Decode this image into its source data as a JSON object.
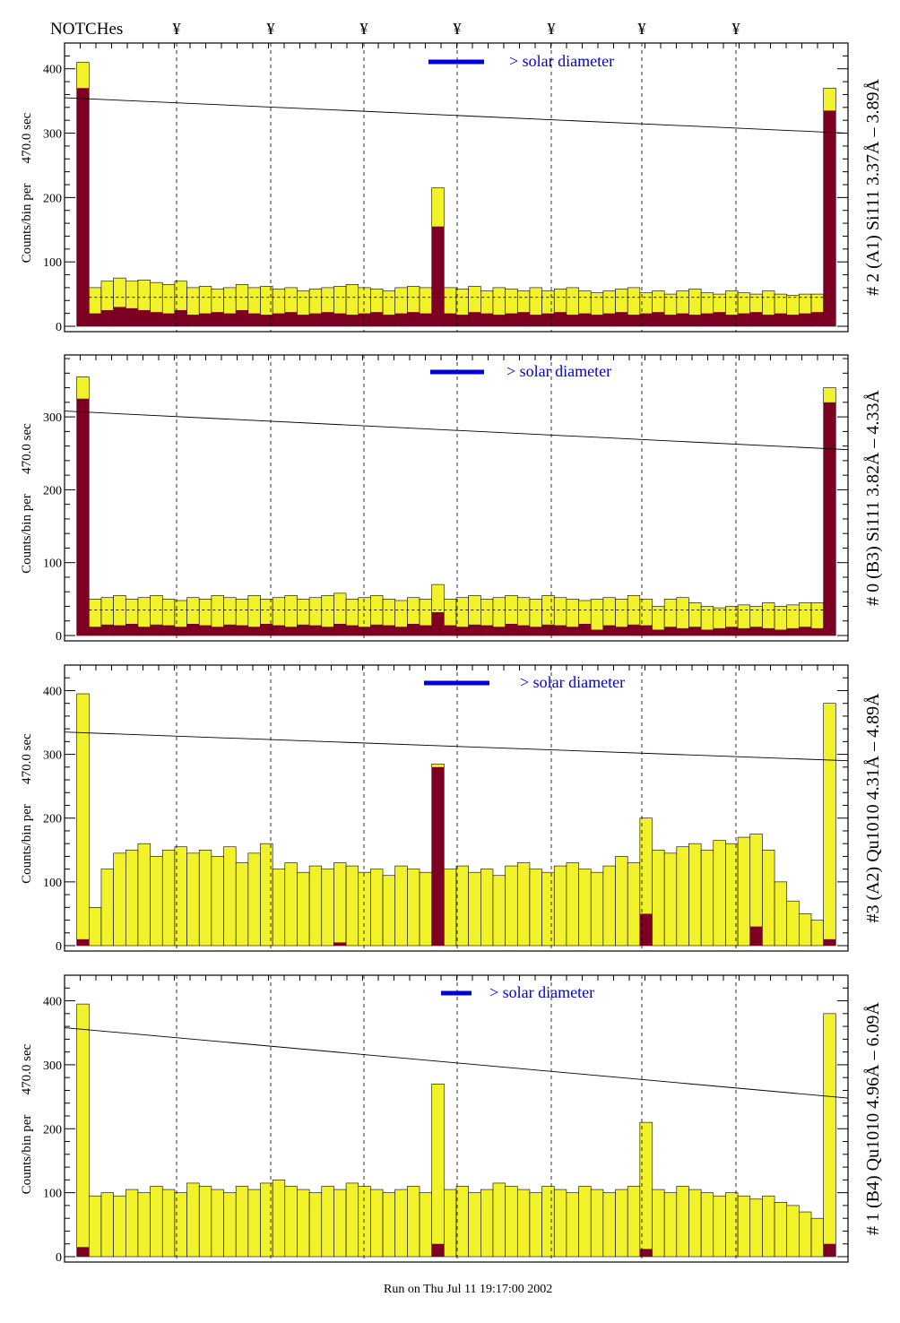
{
  "header": {
    "notches_label": "NOTCHes",
    "notch_glyph": "¥",
    "notch_count": 7
  },
  "footer": {
    "run_text": "Run on Thu Jul 11 19:17:00 2002"
  },
  "legend": {
    "label": "> solar diameter",
    "color": "#0000dd"
  },
  "colors": {
    "yellow": "#f2f22a",
    "darkred": "#7d0022"
  },
  "chart_data": [
    {
      "type": "bar",
      "title": "# 2 (A1) Si111  3.37Å – 3.89Å",
      "ylabel_top": "470.0 sec",
      "ylabel": "Counts/bin per",
      "ylim": [
        0,
        440
      ],
      "yticks": [
        "0",
        "100",
        "200",
        "300",
        "400"
      ],
      "ytick_values": [
        0,
        100,
        200,
        300,
        400
      ],
      "trend": [
        355,
        300
      ],
      "dashed_level": 45,
      "yellow": [
        0,
        410,
        60,
        70,
        75,
        70,
        72,
        68,
        65,
        70,
        60,
        62,
        58,
        60,
        65,
        60,
        62,
        58,
        60,
        55,
        58,
        60,
        62,
        65,
        60,
        58,
        55,
        60,
        62,
        60,
        215,
        60,
        58,
        62,
        55,
        60,
        58,
        55,
        60,
        55,
        58,
        60,
        55,
        52,
        55,
        58,
        60,
        52,
        55,
        50,
        55,
        58,
        52,
        50,
        55,
        52,
        50,
        55,
        50,
        48,
        50,
        50,
        370,
        0
      ],
      "red": [
        0,
        370,
        20,
        25,
        30,
        28,
        25,
        22,
        20,
        25,
        18,
        20,
        22,
        20,
        25,
        20,
        18,
        20,
        22,
        18,
        20,
        22,
        20,
        18,
        20,
        22,
        18,
        20,
        22,
        20,
        155,
        20,
        18,
        22,
        20,
        18,
        20,
        22,
        18,
        20,
        22,
        18,
        20,
        18,
        20,
        22,
        18,
        20,
        22,
        18,
        20,
        18,
        20,
        22,
        18,
        20,
        22,
        18,
        20,
        18,
        20,
        22,
        335,
        0
      ]
    },
    {
      "type": "bar",
      "title": "# 0 (B3) Si111  3.82Å – 4.33Å",
      "ylabel_top": "470.0 sec",
      "ylabel": "Counts/bin per",
      "ylim": [
        0,
        385
      ],
      "yticks": [
        "0",
        "100",
        "200",
        "300"
      ],
      "ytick_values": [
        0,
        100,
        200,
        300
      ],
      "trend": [
        308,
        255
      ],
      "dashed_level": 35,
      "yellow": [
        0,
        355,
        50,
        52,
        55,
        50,
        52,
        55,
        50,
        48,
        52,
        50,
        55,
        52,
        50,
        55,
        50,
        52,
        55,
        50,
        52,
        55,
        58,
        50,
        52,
        55,
        50,
        48,
        52,
        50,
        70,
        50,
        52,
        55,
        50,
        52,
        55,
        52,
        50,
        55,
        52,
        50,
        48,
        50,
        52,
        50,
        55,
        50,
        40,
        50,
        52,
        45,
        40,
        38,
        40,
        42,
        40,
        45,
        40,
        42,
        45,
        45,
        340,
        0
      ],
      "red": [
        0,
        325,
        12,
        15,
        14,
        16,
        12,
        15,
        14,
        12,
        16,
        14,
        12,
        15,
        14,
        12,
        16,
        14,
        12,
        15,
        14,
        12,
        16,
        14,
        12,
        15,
        14,
        12,
        16,
        14,
        32,
        14,
        12,
        15,
        14,
        12,
        16,
        14,
        12,
        15,
        14,
        12,
        16,
        8,
        14,
        12,
        15,
        14,
        8,
        12,
        10,
        12,
        8,
        10,
        12,
        10,
        12,
        10,
        8,
        10,
        12,
        10,
        320,
        0
      ]
    },
    {
      "type": "bar",
      "title": "#3 (A2) Qu1010  4.31Å – 4.89Å",
      "ylabel_top": "470.0 sec",
      "ylabel": "Counts/bin per",
      "ylim": [
        0,
        440
      ],
      "yticks": [
        "0",
        "100",
        "200",
        "300",
        "400"
      ],
      "ytick_values": [
        0,
        100,
        200,
        300,
        400
      ],
      "trend": [
        335,
        290
      ],
      "dashed_level": null,
      "yellow": [
        0,
        395,
        60,
        120,
        145,
        150,
        160,
        140,
        150,
        155,
        145,
        150,
        140,
        155,
        130,
        145,
        160,
        120,
        130,
        115,
        125,
        120,
        130,
        125,
        115,
        120,
        110,
        125,
        120,
        115,
        285,
        120,
        125,
        115,
        120,
        110,
        125,
        130,
        120,
        115,
        125,
        130,
        120,
        115,
        125,
        140,
        130,
        200,
        150,
        145,
        155,
        160,
        150,
        165,
        160,
        170,
        175,
        150,
        100,
        70,
        50,
        40,
        380,
        0
      ],
      "red": [
        0,
        10,
        0,
        0,
        0,
        0,
        0,
        0,
        0,
        0,
        0,
        0,
        0,
        0,
        0,
        0,
        0,
        0,
        0,
        0,
        0,
        0,
        5,
        0,
        0,
        0,
        0,
        0,
        0,
        0,
        280,
        0,
        0,
        0,
        0,
        0,
        0,
        0,
        0,
        0,
        0,
        0,
        0,
        0,
        0,
        0,
        0,
        50,
        0,
        0,
        0,
        0,
        0,
        0,
        0,
        0,
        30,
        0,
        0,
        0,
        0,
        0,
        10,
        0
      ]
    },
    {
      "type": "bar",
      "title": "# 1 (B4) Qu1010 4.96Å – 6.09Å",
      "ylabel_top": "470.0 sec",
      "ylabel": "Counts/bin per",
      "ylim": [
        0,
        440
      ],
      "yticks": [
        "0",
        "100",
        "200",
        "300",
        "400"
      ],
      "ytick_values": [
        0,
        100,
        200,
        300,
        400
      ],
      "trend": [
        358,
        248
      ],
      "dashed_level": null,
      "yellow": [
        0,
        395,
        95,
        100,
        95,
        105,
        100,
        110,
        105,
        100,
        115,
        110,
        105,
        100,
        110,
        105,
        115,
        120,
        110,
        105,
        100,
        110,
        105,
        115,
        110,
        105,
        100,
        105,
        110,
        100,
        270,
        105,
        110,
        100,
        105,
        115,
        110,
        105,
        100,
        110,
        105,
        100,
        110,
        105,
        100,
        105,
        110,
        210,
        105,
        100,
        110,
        105,
        100,
        95,
        100,
        95,
        90,
        95,
        85,
        80,
        70,
        60,
        380,
        0
      ],
      "red": [
        0,
        15,
        0,
        0,
        0,
        0,
        0,
        0,
        0,
        0,
        0,
        0,
        0,
        0,
        0,
        0,
        0,
        0,
        0,
        0,
        0,
        0,
        0,
        0,
        0,
        0,
        0,
        0,
        0,
        0,
        20,
        0,
        0,
        0,
        0,
        0,
        0,
        0,
        0,
        0,
        0,
        0,
        0,
        0,
        0,
        0,
        0,
        12,
        0,
        0,
        0,
        0,
        0,
        0,
        0,
        0,
        0,
        0,
        0,
        0,
        0,
        0,
        20,
        0
      ]
    }
  ]
}
